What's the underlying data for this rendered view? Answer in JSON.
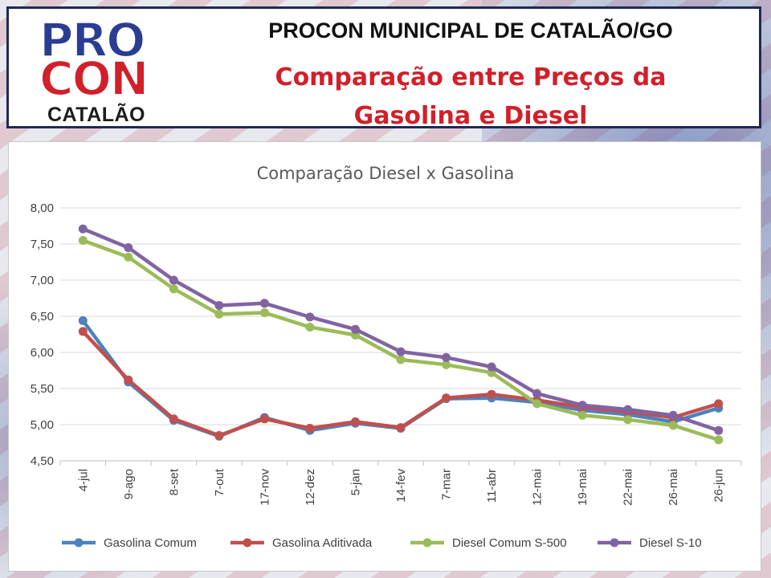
{
  "header": {
    "logo_line1": "PRO",
    "logo_line2": "CON",
    "logo_line3": "CATALÃO",
    "title": "PROCON MUNICIPAL DE CATALÃO/GO",
    "subtitle_line1": "Comparação entre Preços da",
    "subtitle_line2": "Gasolina e Diesel"
  },
  "colors": {
    "brand_blue": "#2a3d93",
    "brand_red": "#d1202a",
    "gasolina_comum": "#4f81bd",
    "gasolina_aditivada": "#c0504d",
    "diesel_comum_s500": "#9bbb59",
    "diesel_s10": "#8064a2"
  },
  "chart_data": {
    "type": "line",
    "title": "Comparação Diesel x Gasolina",
    "xlabel": "",
    "ylabel": "",
    "ylim": [
      4.5,
      8.0
    ],
    "yticks": [
      "8,00",
      "7,50",
      "7,00",
      "6,50",
      "6,00",
      "5,50",
      "5,00",
      "4,50"
    ],
    "grid": true,
    "legend_position": "bottom",
    "categories": [
      "4-jul",
      "9-ago",
      "8-set",
      "7-out",
      "17-nov",
      "12-dez",
      "5-jan",
      "14-fev",
      "7-mar",
      "11-abr",
      "12-mai",
      "19-mai",
      "22-mai",
      "26-mai",
      "26-jun"
    ],
    "series": [
      {
        "name": "Gasolina Comum",
        "color": "#4f81bd",
        "values": [
          6.44,
          5.59,
          5.06,
          4.84,
          5.1,
          4.92,
          5.02,
          4.95,
          5.36,
          5.37,
          5.31,
          5.2,
          5.14,
          5.04,
          5.23
        ]
      },
      {
        "name": "Gasolina Aditivada",
        "color": "#c0504d",
        "values": [
          6.29,
          5.62,
          5.08,
          4.85,
          5.08,
          4.95,
          5.04,
          4.96,
          5.37,
          5.42,
          5.34,
          5.24,
          5.18,
          5.1,
          5.29
        ]
      },
      {
        "name": "Diesel Comum S-500",
        "color": "#9bbb59",
        "values": [
          7.55,
          7.32,
          6.88,
          6.53,
          6.55,
          6.35,
          6.24,
          5.9,
          5.83,
          5.72,
          5.29,
          5.13,
          5.07,
          4.99,
          4.79
        ]
      },
      {
        "name": "Diesel S-10",
        "color": "#8064a2",
        "values": [
          7.71,
          7.45,
          7.0,
          6.65,
          6.68,
          6.49,
          6.32,
          6.01,
          5.93,
          5.8,
          5.43,
          5.27,
          5.21,
          5.13,
          4.92
        ]
      }
    ]
  }
}
